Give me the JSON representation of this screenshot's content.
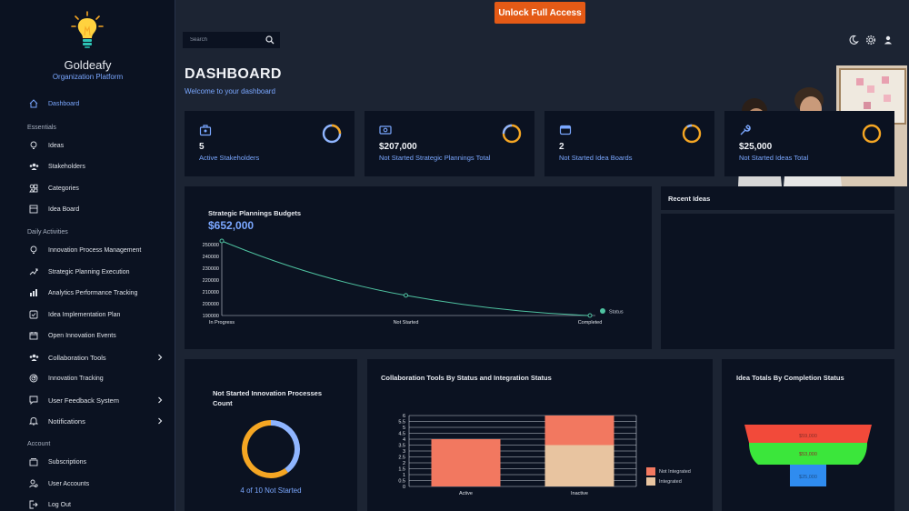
{
  "brand": {
    "name": "Goldeafy",
    "subtitle": "Organization Platform"
  },
  "sidebar": {
    "top_items": [
      {
        "label": "Dashboard",
        "icon": "home-icon",
        "active": true
      }
    ],
    "sections": [
      {
        "label": "Essentials",
        "items": [
          {
            "label": "Ideas",
            "icon": "lightbulb-icon"
          },
          {
            "label": "Stakeholders",
            "icon": "users-icon"
          },
          {
            "label": "Categories",
            "icon": "categories-icon"
          },
          {
            "label": "Idea Board",
            "icon": "board-icon"
          }
        ]
      },
      {
        "label": "Daily Activities",
        "items": [
          {
            "label": "Innovation Process Management",
            "icon": "lightbulb-icon"
          },
          {
            "label": "Strategic Planning Execution",
            "icon": "strategy-icon"
          },
          {
            "label": "Analytics Performance Tracking",
            "icon": "chart-icon"
          },
          {
            "label": "Idea Implementation Plan",
            "icon": "checklist-icon"
          },
          {
            "label": "Open Innovation Events",
            "icon": "calendar-icon"
          },
          {
            "label": "Collaboration Tools",
            "icon": "users-icon",
            "expandable": true
          },
          {
            "label": "Innovation Tracking",
            "icon": "radar-icon"
          },
          {
            "label": "User Feedback System",
            "icon": "feedback-icon",
            "expandable": true
          },
          {
            "label": "Notifications",
            "icon": "bell-icon",
            "expandable": true
          }
        ]
      },
      {
        "label": "Account",
        "items": [
          {
            "label": "Subscriptions",
            "icon": "subscriptions-icon"
          },
          {
            "label": "User Accounts",
            "icon": "user-accounts-icon"
          },
          {
            "label": "Log Out",
            "icon": "logout-icon"
          }
        ]
      }
    ]
  },
  "topbar": {
    "unlock_label": "Unlock Full Access",
    "search_placeholder": "Search",
    "icons": [
      "moon-icon",
      "settings-icon",
      "user-icon"
    ]
  },
  "header": {
    "title": "DASHBOARD",
    "subtitle": "Welcome to your dashboard"
  },
  "stats": [
    {
      "value": "5",
      "label": "Active Stakeholders",
      "icon": "stakeholders-icon"
    },
    {
      "value": "$207,000",
      "label": "Not Started Strategic Plannings Total",
      "icon": "money-icon"
    },
    {
      "value": "2",
      "label": "Not Started Idea Boards",
      "icon": "board-icon"
    },
    {
      "value": "$25,000",
      "label": "Not Started Ideas Total",
      "icon": "wrench-icon"
    }
  ],
  "colors": {
    "accent": "#7aa7ff",
    "ring": "#f5a623",
    "line": "#4fc3a1",
    "brand_orange": "#e45a16"
  },
  "recent_ideas": {
    "title": "Recent Ideas"
  },
  "chart_data": [
    {
      "type": "line",
      "title": "Strategic Plannings Budgets",
      "total": "$652,000",
      "categories": [
        "In Progress",
        "Not Started",
        "Completed"
      ],
      "series": [
        {
          "name": "Status",
          "values": [
            255000,
            207000,
            190000
          ]
        }
      ],
      "ylim": [
        190000,
        250000
      ],
      "yticks": [
        190000,
        200000,
        210000,
        220000,
        230000,
        240000,
        250000
      ],
      "legend": "right",
      "grid": false
    },
    {
      "type": "pie",
      "title": "Not Started Innovation Processes Count",
      "caption": "4 of 10 Not Started",
      "values": [
        4,
        6
      ],
      "colors": [
        "#8fb5ff",
        "#f5a623"
      ]
    },
    {
      "type": "bar",
      "title": "Collaboration Tools By Status and Integration Status",
      "categories": [
        "Active",
        "Inactive"
      ],
      "series": [
        {
          "name": "Not Integrated",
          "values": [
            4,
            2.5
          ],
          "color": "#f27860"
        },
        {
          "name": "Integrated",
          "values": [
            0,
            3.5
          ],
          "color": "#e8c4a0"
        }
      ],
      "ylim": [
        0,
        6
      ],
      "yticks": [
        0,
        0.5,
        1,
        1.5,
        2,
        2.5,
        3,
        3.5,
        4,
        4.5,
        5,
        5.5,
        6
      ],
      "stacked": true,
      "legend": "right",
      "grid": true
    },
    {
      "type": "funnel",
      "title": "Idea Totals By Completion Status",
      "values": [
        {
          "label": "$59,000",
          "color": "#f24a3a"
        },
        {
          "label": "$53,000",
          "color": "#3be63b"
        },
        {
          "label": "$25,000",
          "color": "#2f8cf0"
        }
      ]
    }
  ]
}
